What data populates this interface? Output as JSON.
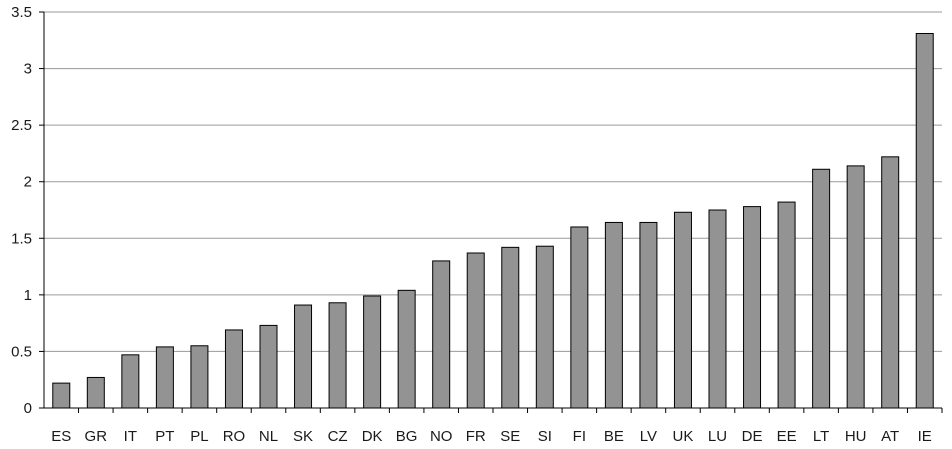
{
  "chart_data": {
    "type": "bar",
    "title": "",
    "xlabel": "",
    "ylabel": "",
    "ylim": [
      0,
      3.5
    ],
    "yticks": [
      "0",
      "0.5",
      "1",
      "1.5",
      "2",
      "2.5",
      "3",
      "3.5"
    ],
    "grid": true,
    "categories": [
      "ES",
      "GR",
      "IT",
      "PT",
      "PL",
      "RO",
      "NL",
      "SK",
      "CZ",
      "DK",
      "BG",
      "NO",
      "FR",
      "SE",
      "SI",
      "FI",
      "BE",
      "LV",
      "UK",
      "LU",
      "DE",
      "EE",
      "LT",
      "HU",
      "AT",
      "IE"
    ],
    "values": [
      0.22,
      0.27,
      0.47,
      0.54,
      0.55,
      0.69,
      0.73,
      0.91,
      0.93,
      0.99,
      1.04,
      1.3,
      1.37,
      1.42,
      1.43,
      1.6,
      1.64,
      1.64,
      1.73,
      1.75,
      1.78,
      1.82,
      2.11,
      2.14,
      2.22,
      3.31
    ],
    "colors": {
      "bar_fill": "#939393",
      "bar_stroke": "#000000",
      "grid": "#9a9a9a",
      "axis": "#000000"
    }
  }
}
